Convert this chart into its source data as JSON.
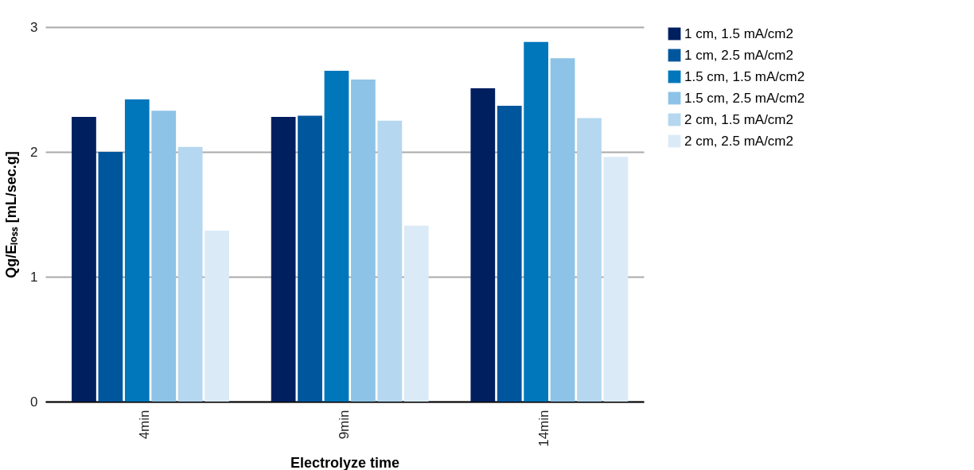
{
  "chart_data": {
    "type": "bar",
    "xlabel": "Electrolyze time",
    "ylabel": "Qg/Eₗₒₛₛ [mL/sec.g]",
    "categories": [
      "4min",
      "9min",
      "14min"
    ],
    "ylim": [
      0,
      3
    ],
    "yticks": [
      0,
      1,
      2,
      3
    ],
    "grid": "y",
    "legend": "right",
    "series": [
      {
        "name": "1 cm, 1.5 mA/cm2",
        "color": "#001f5f",
        "values": [
          2.28,
          2.28,
          2.51
        ]
      },
      {
        "name": "1 cm, 2.5 mA/cm2",
        "color": "#00569d",
        "values": [
          2.0,
          2.29,
          2.37
        ]
      },
      {
        "name": "1.5 cm, 1.5 mA/cm2",
        "color": "#0077bb",
        "values": [
          2.42,
          2.65,
          2.88
        ]
      },
      {
        "name": "1.5 cm, 2.5 mA/cm2",
        "color": "#8dc3e6",
        "values": [
          2.33,
          2.58,
          2.75
        ]
      },
      {
        "name": "2 cm, 1.5 mA/cm2",
        "color": "#b5d7ef",
        "values": [
          2.04,
          2.25,
          2.27
        ]
      },
      {
        "name": "2 cm, 2.5 mA/cm2",
        "color": "#dbeaf7",
        "values": [
          1.37,
          1.41,
          1.96
        ]
      }
    ]
  }
}
